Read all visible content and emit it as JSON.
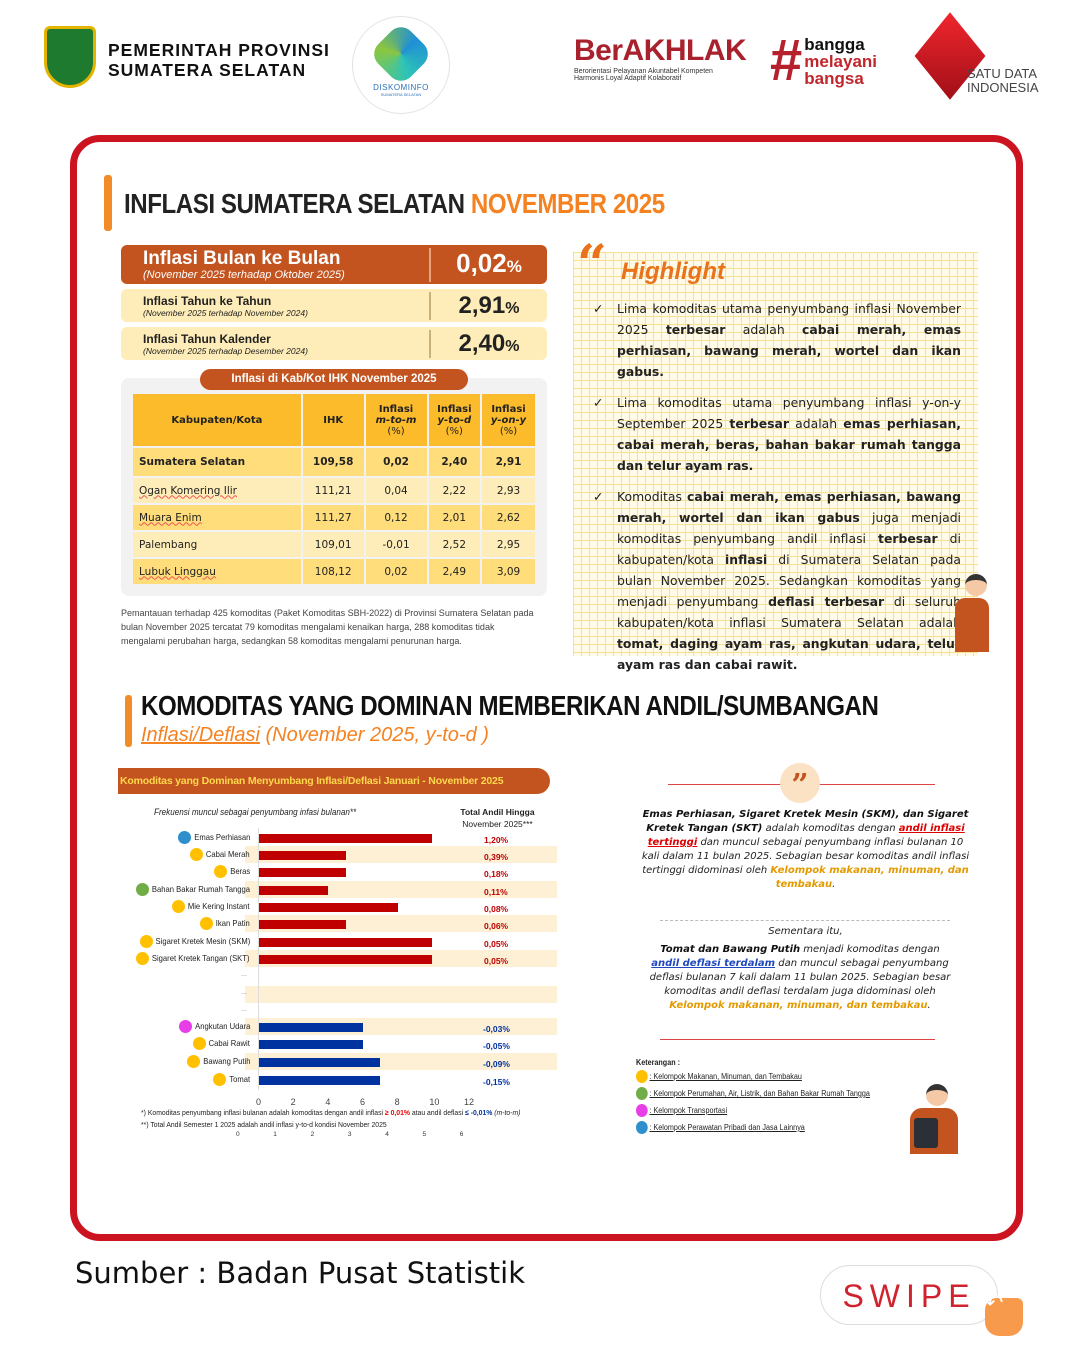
{
  "header": {
    "gov_line1": "PEMERINTAH PROVINSI",
    "gov_line2": "SUMATERA SELATAN",
    "diskominfo": "DISKOMINFO",
    "diskominfo_sub": "SUMATERA SELATAN",
    "berakhlak": "BerAKHLAK",
    "berakhlak_sub1": "Berorientasi Pelayanan Akuntabel Kompeten",
    "berakhlak_sub2": "Harmonis Loyal Adaptif Kolaboratif",
    "bangga": [
      "bangga",
      "melayani",
      "bangsa"
    ],
    "satu_data": [
      "SATU DATA",
      "INDONESIA"
    ]
  },
  "title": {
    "main": "INFLASI SUMATERA SELATAN ",
    "accent": "NOVEMBER 2025"
  },
  "cards": [
    {
      "label": "Inflasi Bulan ke Bulan",
      "sub": "(November 2025 terhadap Oktober 2025)",
      "value": "0,02",
      "unit": "%"
    },
    {
      "label": "Inflasi Tahun ke Tahun",
      "sub": "(November 2025 terhadap November 2024)",
      "value": "2,91",
      "unit": "%"
    },
    {
      "label": "Inflasi Tahun Kalender",
      "sub": "(November 2025 terhadap Desember 2024)",
      "value": "2,40",
      "unit": "%"
    }
  ],
  "table": {
    "title": "Inflasi di Kab/Kot IHK November 2025",
    "headers": [
      [
        "Kabupaten/Kota"
      ],
      [
        "IHK"
      ],
      [
        "Inflasi",
        "m-to-m",
        "(%)"
      ],
      [
        "Inflasi",
        "y-to-d",
        "(%)"
      ],
      [
        "Inflasi",
        "y-on-y",
        "(%)"
      ]
    ],
    "rows": [
      [
        "Sumatera Selatan",
        "109,58",
        "0,02",
        "2,40",
        "2,91"
      ],
      [
        "Ogan Komering Ilir",
        "111,21",
        "0,04",
        "2,22",
        "2,93"
      ],
      [
        "Muara Enim",
        "111,27",
        "0,12",
        "2,01",
        "2,62"
      ],
      [
        "Palembang",
        "109,01",
        "-0,01",
        "2,52",
        "2,95"
      ],
      [
        "Lubuk Linggau",
        "108,12",
        "0,02",
        "2,49",
        "3,09"
      ]
    ]
  },
  "note": "Pemantauan terhadap 425 komoditas (Paket Komoditas SBH-2022) di Provinsi Sumatera Selatan pada bulan November 2025 tercatat 79 komoditas mengalami kenaikan harga, 288 komoditas tidak mengalami perubahan harga, sedangkan 58 komoditas mengalami penurunan harga.",
  "highlight": {
    "title": "Highlight",
    "items": [
      [
        [
          "Lima komoditas utama penyumbang inflasi November 2025 ",
          0
        ],
        [
          "terbesar",
          1
        ],
        [
          " adalah ",
          0
        ],
        [
          "cabai merah, emas perhiasan, bawang merah, wortel dan ikan gabus.",
          1
        ]
      ],
      [
        [
          "Lima komoditas utama penyumbang inflasi y-on-y September 2025 ",
          0
        ],
        [
          "terbesar",
          1
        ],
        [
          " adalah ",
          0
        ],
        [
          "emas perhiasan, cabai merah, beras, bahan bakar rumah tangga dan telur ayam ras.",
          1
        ]
      ],
      [
        [
          "Komoditas ",
          0
        ],
        [
          "cabai merah, emas perhiasan, bawang merah, wortel dan ikan gabus",
          1
        ],
        [
          " juga menjadi komoditas penyumbang andil inflasi ",
          0
        ],
        [
          "terbesar",
          1
        ],
        [
          " di kabupaten/kota ",
          0
        ],
        [
          "inflasi",
          1
        ],
        [
          " di Sumatera Selatan pada bulan November 2025. Sedangkan komoditas yang menjadi penyumbang ",
          0
        ],
        [
          "deflasi terbesar",
          1
        ],
        [
          " di seluruh kabupaten/kota inflasi Sumatera Selatan adalah ",
          0
        ],
        [
          "tomat, daging ayam ras, angkutan udara, telur ayam ras dan cabai rawit.",
          1
        ]
      ]
    ]
  },
  "section2": {
    "title": "KOMODITAS YANG DOMINAN MEMBERIKAN ANDIL/SUMBANGAN",
    "subtitle_a": "Inflasi/Deflasi",
    "subtitle_b": " (November 2025, y-to-d )"
  },
  "chart_data": {
    "type": "bar",
    "orientation": "horizontal",
    "title": "Komoditas yang Dominan Menyumbang Inflasi/Deflasi Januari - November 2025",
    "xlabel": "Frekuensi muncul sebagai penyumbang infasi bulanan**",
    "andil_header": [
      "Total Andil Hingga",
      "November 2025***"
    ],
    "xlim": [
      0,
      12
    ],
    "xticks": [
      "0",
      "2",
      "4",
      "6",
      "8",
      "10",
      "12"
    ],
    "xticks_secondary": [
      "0",
      "1",
      "2",
      "3",
      "4",
      "5",
      "6"
    ],
    "inflation": [
      {
        "name": "Emas Perhiasan",
        "group": "blue",
        "value": 10,
        "andil": "1,20%"
      },
      {
        "name": "Cabai Merah",
        "group": "yellow",
        "value": 5,
        "andil": "0,39%"
      },
      {
        "name": "Beras",
        "group": "yellow",
        "value": 5,
        "andil": "0,18%"
      },
      {
        "name": "Bahan Bakar Rumah Tangga",
        "group": "green",
        "value": 4,
        "andil": "0,11%"
      },
      {
        "name": "Mie Kering Instant",
        "group": "yellow",
        "value": 8,
        "andil": "0,08%"
      },
      {
        "name": "Ikan Patin",
        "group": "yellow",
        "value": 5,
        "andil": "0,06%"
      },
      {
        "name": "Sigaret Kretek Mesin (SKM)",
        "group": "yellow",
        "value": 10,
        "andil": "0,05%"
      },
      {
        "name": "Sigaret Kretek Tangan (SKT)",
        "group": "yellow",
        "value": 10,
        "andil": "0,05%"
      }
    ],
    "gap_labels": [
      "...",
      "...",
      "..."
    ],
    "deflation": [
      {
        "name": "Angkutan Udara",
        "group": "magenta",
        "value": 6,
        "andil": "-0,03%"
      },
      {
        "name": "Cabai Rawit",
        "group": "yellow",
        "value": 6,
        "andil": "-0,05%"
      },
      {
        "name": "Bawang Putih",
        "group": "yellow",
        "value": 7,
        "andil": "-0,09%"
      },
      {
        "name": "Tomat",
        "group": "yellow",
        "value": 7,
        "andil": "-0,15%"
      }
    ],
    "colors": {
      "inflation": "#c00000",
      "deflation": "#0033a0"
    },
    "footnote1_a": "*) Komoditas penyumbang inflasi bulanan adalah komoditas dengan andil inflasi ",
    "footnote1_b": "≥ 0,01%",
    "footnote1_c": " atau andil deflasi ",
    "footnote1_d": "≤ -0,01%",
    "footnote1_e": " (m-to-m)",
    "footnote2": "**) Total Andil Semester 1 2025 adalah andil inflasi y-to-d kondisi November 2025"
  },
  "quote": {
    "p1": [
      [
        "Emas Perhiasan, Sigaret Kretek Mesin (SKM), dan Sigaret Kretek Tangan (SKT)",
        "b"
      ],
      [
        " adalah komoditas dengan ",
        ""
      ],
      [
        "andil inflasi tertinggi",
        "r"
      ],
      [
        " dan muncul sebagai penyumbang inflasi bulanan 10 kali dalam 11 bulan 2025. Sebagian besar komoditas andil inflasi tertinggi didominasi oleh ",
        ""
      ],
      [
        "Kelompok makanan, minuman, dan tembakau",
        "y"
      ],
      [
        ".",
        ""
      ]
    ],
    "p2_intro": "Sementara itu,",
    "p2": [
      [
        "Tomat dan Bawang Putih",
        "b"
      ],
      [
        " menjadi komoditas dengan ",
        ""
      ],
      [
        "andil deflasi terdalam",
        "u"
      ],
      [
        " dan muncul sebagai penyumbang deflasi bulanan 7 kali dalam 11 bulan 2025. Sebagian besar komoditas andil deflasi terdalam juga didominasi oleh ",
        ""
      ],
      [
        "Kelompok makanan, minuman, dan tembakau",
        "y"
      ],
      [
        ".",
        ""
      ]
    ]
  },
  "legend": {
    "title": "Keterangan :",
    "items": [
      {
        "color": "#ffc000",
        "label": ": Kelompok Makanan, Minuman, dan Tembakau"
      },
      {
        "color": "#70ad47",
        "label": ": Kelompok Perumahan, Air, Listrik, dan Bahan Bakar Rumah Tangga"
      },
      {
        "color": "#e83ee8",
        "label": ": Kelompok Transportasi"
      },
      {
        "color": "#2e8fcc",
        "label": ": Kelompok Perawatan Pribadi dan Jasa Lainnya"
      }
    ]
  },
  "group_colors": {
    "yellow": "#ffc000",
    "green": "#70ad47",
    "magenta": "#e83ee8",
    "blue": "#2e8fcc"
  },
  "footer": {
    "source": "Sumber : Badan Pusat Statistik",
    "swipe": "SWIPE"
  }
}
